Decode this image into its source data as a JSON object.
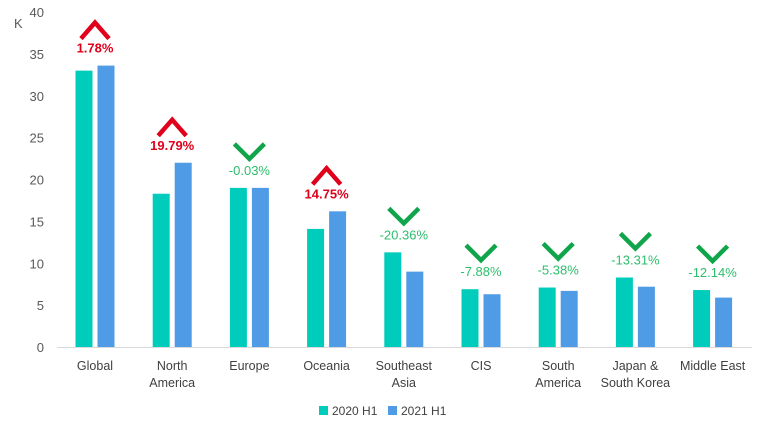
{
  "chart_data": {
    "type": "bar",
    "ylabel": "K",
    "ylim": [
      0,
      40
    ],
    "yticks": [
      "0",
      "5",
      "10",
      "15",
      "20",
      "25",
      "30",
      "35",
      "40"
    ],
    "grid": false,
    "legend_position": "bottom",
    "categories": [
      [
        "Global"
      ],
      [
        "North",
        "America"
      ],
      [
        "Europe"
      ],
      [
        "Oceania"
      ],
      [
        "Southeast",
        "Asia"
      ],
      [
        "CIS"
      ],
      [
        "South",
        "America"
      ],
      [
        "Japan &",
        "South Korea"
      ],
      [
        "Middle East"
      ]
    ],
    "series": [
      {
        "name": "2020 H1",
        "color": "#00CCBB",
        "values": [
          33.0,
          18.3,
          19.0,
          14.1,
          11.3,
          6.9,
          7.1,
          8.3,
          6.8
        ]
      },
      {
        "name": "2021 H1",
        "color": "#4F9BE6",
        "values": [
          33.6,
          22.0,
          19.0,
          16.2,
          9.0,
          6.3,
          6.7,
          7.2,
          5.9
        ]
      }
    ],
    "annotations": [
      {
        "text": "1.78%",
        "direction": "up"
      },
      {
        "text": "19.79%",
        "direction": "up"
      },
      {
        "text": "-0.03%",
        "direction": "down"
      },
      {
        "text": "14.75%",
        "direction": "up"
      },
      {
        "text": "-20.36%",
        "direction": "down"
      },
      {
        "text": "-7.88%",
        "direction": "down"
      },
      {
        "text": "-5.38%",
        "direction": "down"
      },
      {
        "text": "-13.31%",
        "direction": "down"
      },
      {
        "text": "-12.14%",
        "direction": "down"
      }
    ],
    "up_color": "#E0001B",
    "down_color": "#11A54B",
    "down_text_color": "#2DBE6C"
  }
}
